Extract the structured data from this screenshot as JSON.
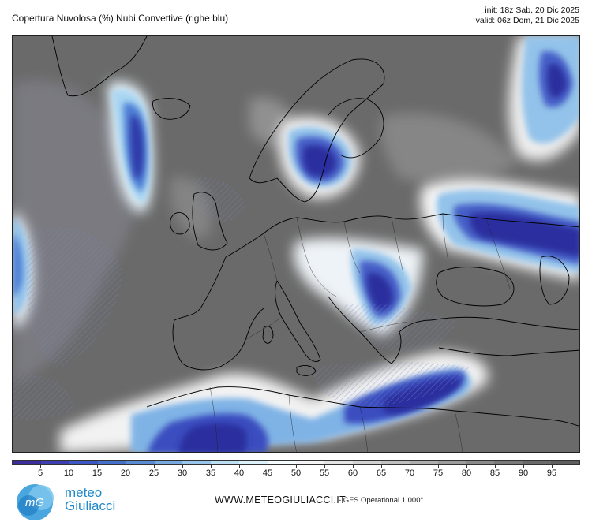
{
  "header": {
    "title": "Copertura Nuvolosa (%) Nubi Convettive (righe blu)",
    "init": "init: 18z Sab, 20 Dic 2025",
    "valid": "valid: 06z Dom, 21 Dic 2025"
  },
  "map": {
    "region": "Europe, North Africa and North Atlantic",
    "variable": "total cloud cover (%)",
    "overlay": "convective clouds (blue hatching)",
    "colors": {
      "ocean_gray": "#6a6a6a",
      "high_cover_blue": "#2a35b0",
      "mid_blue": "#4f86d6",
      "light_blue": "#bfe6f7",
      "white": "#ffffff",
      "coastline": "#000000"
    }
  },
  "legend": {
    "ticks": [
      "5",
      "10",
      "15",
      "20",
      "25",
      "30",
      "35",
      "40",
      "45",
      "50",
      "55",
      "60",
      "65",
      "70",
      "75",
      "80",
      "85",
      "90",
      "95"
    ],
    "colors": [
      "#3b2d9c",
      "#3d3fb0",
      "#3e55c4",
      "#4470cc",
      "#5a8cd6",
      "#78a9e0",
      "#9ac6ec",
      "#bcdff4",
      "#dcf1fa",
      "#f6fbfd",
      "#f4f4f4",
      "#e4e4e4",
      "#d2d2d2",
      "#c0c0c0",
      "#aeaeae",
      "#9c9c9c",
      "#8a8a8a",
      "#797979",
      "#6a6a6a",
      "#5e5e5e"
    ]
  },
  "footer": {
    "brand_top": "meteo",
    "brand_bottom": "Giuliacci",
    "logo_letters": "mG",
    "url": "WWW.METEOGIULIACCI.IT",
    "model": "- GFS Operational 1.000°"
  }
}
